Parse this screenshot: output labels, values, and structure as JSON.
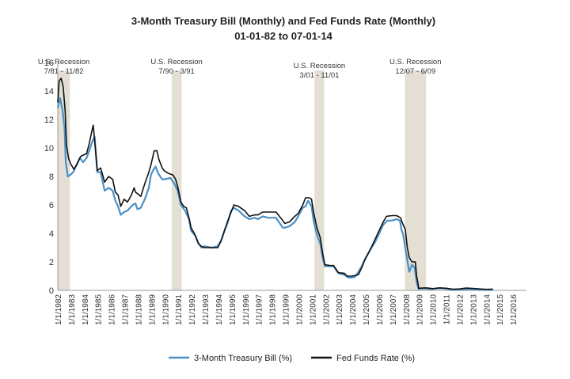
{
  "chart_data": {
    "type": "line",
    "title": "3-Month Treasury Bill (Monthly) and Fed Funds Rate (Monthly)",
    "subtitle": "01-01-82 to 07-01-14",
    "ylim": [
      0,
      16
    ],
    "yticks": [
      0,
      2,
      4,
      6,
      8,
      10,
      12,
      14,
      16
    ],
    "xlim": [
      1982,
      2017
    ],
    "xticks": [
      {
        "year": 1982,
        "label": "1/1/1982"
      },
      {
        "year": 1983,
        "label": "1/1/1983"
      },
      {
        "year": 1984,
        "label": "1/1/1984"
      },
      {
        "year": 1985,
        "label": "1/1/1985"
      },
      {
        "year": 1986,
        "label": "1/1/1986"
      },
      {
        "year": 1987,
        "label": "1/1/1987"
      },
      {
        "year": 1988,
        "label": "1/1/1988"
      },
      {
        "year": 1989,
        "label": "1/1/1989"
      },
      {
        "year": 1990,
        "label": "1/1/1990"
      },
      {
        "year": 1991,
        "label": "1/1/1991"
      },
      {
        "year": 1992,
        "label": "1/1/1992"
      },
      {
        "year": 1993,
        "label": "1/1/1993"
      },
      {
        "year": 1994,
        "label": "1/1/1994"
      },
      {
        "year": 1995,
        "label": "1/1/1995"
      },
      {
        "year": 1996,
        "label": "1/1/1996"
      },
      {
        "year": 1997,
        "label": "1/1/1997"
      },
      {
        "year": 1998,
        "label": "1/1/1998"
      },
      {
        "year": 1999,
        "label": "1/1/1999"
      },
      {
        "year": 2000,
        "label": "1/1/2000"
      },
      {
        "year": 2001,
        "label": "1/1/2001"
      },
      {
        "year": 2002,
        "label": "1/1/2002"
      },
      {
        "year": 2003,
        "label": "1/1/2003"
      },
      {
        "year": 2004,
        "label": "1/1/2004"
      },
      {
        "year": 2005,
        "label": "1/1/2005"
      },
      {
        "year": 2006,
        "label": "1/1/2006"
      },
      {
        "year": 2007,
        "label": "1/1/2007"
      },
      {
        "year": 2008,
        "label": "1/1/2008"
      },
      {
        "year": 2009,
        "label": "1/1/2009"
      },
      {
        "year": 2010,
        "label": "1/1/2010"
      },
      {
        "year": 2011,
        "label": "1/1/2011"
      },
      {
        "year": 2012,
        "label": "1/1/2012"
      },
      {
        "year": 2013,
        "label": "1/1/2013"
      },
      {
        "year": 2014,
        "label": "1/1/2014"
      },
      {
        "year": 2015,
        "label": "1/1/2015"
      },
      {
        "year": 2016,
        "label": "1/1/2016"
      }
    ],
    "grid": false,
    "legend_position": "bottom",
    "recessions": [
      {
        "label": "U.S. Recession",
        "dates": "7/81 - 11/82",
        "start": 1982.0,
        "end": 1982.9
      },
      {
        "label": "U.S. Recession",
        "dates": "7/90 - 3/91",
        "start": 1990.5,
        "end": 1991.25
      },
      {
        "label": "U.S. Recession",
        "dates": "3/01 - 11/01",
        "start": 2001.17,
        "end": 2001.9
      },
      {
        "label": "U.S. Recession",
        "dates": "12/07 - 6/09",
        "start": 2007.92,
        "end": 2009.5
      }
    ],
    "colors": {
      "recession": "#e3dfd3",
      "tbill": "#4a90c8",
      "fedfunds": "#111111"
    },
    "series": [
      {
        "name": "3-Month Treasury Bill (%)",
        "points": [
          [
            1982.0,
            12.8
          ],
          [
            1982.17,
            13.5
          ],
          [
            1982.35,
            12.7
          ],
          [
            1982.5,
            11.4
          ],
          [
            1982.6,
            9.0
          ],
          [
            1982.75,
            8.0
          ],
          [
            1982.92,
            8.1
          ],
          [
            1983.15,
            8.3
          ],
          [
            1983.4,
            8.8
          ],
          [
            1983.65,
            9.3
          ],
          [
            1983.9,
            9.0
          ],
          [
            1984.15,
            9.3
          ],
          [
            1984.35,
            9.8
          ],
          [
            1984.6,
            10.5
          ],
          [
            1984.75,
            10.8
          ],
          [
            1984.95,
            8.3
          ],
          [
            1985.2,
            8.3
          ],
          [
            1985.5,
            7.0
          ],
          [
            1985.8,
            7.2
          ],
          [
            1986.1,
            7.0
          ],
          [
            1986.3,
            6.3
          ],
          [
            1986.5,
            5.9
          ],
          [
            1986.7,
            5.3
          ],
          [
            1986.95,
            5.5
          ],
          [
            1987.2,
            5.6
          ],
          [
            1987.4,
            5.8
          ],
          [
            1987.6,
            6.0
          ],
          [
            1987.8,
            6.1
          ],
          [
            1987.95,
            5.7
          ],
          [
            1988.2,
            5.8
          ],
          [
            1988.5,
            6.4
          ],
          [
            1988.8,
            7.2
          ],
          [
            1988.95,
            8.1
          ],
          [
            1989.1,
            8.4
          ],
          [
            1989.3,
            8.7
          ],
          [
            1989.5,
            8.2
          ],
          [
            1989.8,
            7.8
          ],
          [
            1990.0,
            7.8
          ],
          [
            1990.4,
            7.9
          ],
          [
            1990.7,
            7.5
          ],
          [
            1990.95,
            7.0
          ],
          [
            1991.2,
            6.0
          ],
          [
            1991.5,
            5.6
          ],
          [
            1991.8,
            5.0
          ],
          [
            1991.95,
            4.2
          ],
          [
            1992.3,
            3.8
          ],
          [
            1992.5,
            3.3
          ],
          [
            1992.75,
            3.0
          ],
          [
            1992.95,
            3.1
          ],
          [
            1993.5,
            3.0
          ],
          [
            1993.95,
            3.1
          ],
          [
            1994.2,
            3.5
          ],
          [
            1994.45,
            4.2
          ],
          [
            1994.7,
            4.8
          ],
          [
            1994.95,
            5.6
          ],
          [
            1995.15,
            5.8
          ],
          [
            1995.5,
            5.6
          ],
          [
            1995.95,
            5.2
          ],
          [
            1996.3,
            5.0
          ],
          [
            1996.7,
            5.1
          ],
          [
            1996.95,
            5.0
          ],
          [
            1997.3,
            5.2
          ],
          [
            1997.7,
            5.1
          ],
          [
            1997.95,
            5.1
          ],
          [
            1998.3,
            5.1
          ],
          [
            1998.8,
            4.4
          ],
          [
            1998.95,
            4.4
          ],
          [
            1999.3,
            4.5
          ],
          [
            1999.7,
            4.8
          ],
          [
            1999.95,
            5.2
          ],
          [
            2000.3,
            5.8
          ],
          [
            2000.5,
            5.9
          ],
          [
            2000.7,
            6.3
          ],
          [
            2000.95,
            5.9
          ],
          [
            2001.1,
            4.9
          ],
          [
            2001.35,
            3.9
          ],
          [
            2001.6,
            3.3
          ],
          [
            2001.8,
            2.2
          ],
          [
            2001.95,
            1.7
          ],
          [
            2002.3,
            1.7
          ],
          [
            2002.6,
            1.7
          ],
          [
            2002.95,
            1.2
          ],
          [
            2003.4,
            1.1
          ],
          [
            2003.7,
            0.9
          ],
          [
            2003.95,
            0.9
          ],
          [
            2004.2,
            0.95
          ],
          [
            2004.45,
            1.3
          ],
          [
            2004.7,
            1.7
          ],
          [
            2004.95,
            2.2
          ],
          [
            2005.3,
            2.8
          ],
          [
            2005.7,
            3.4
          ],
          [
            2005.95,
            3.9
          ],
          [
            2006.3,
            4.6
          ],
          [
            2006.6,
            4.9
          ],
          [
            2006.95,
            4.9
          ],
          [
            2007.3,
            5.0
          ],
          [
            2007.55,
            4.9
          ],
          [
            2007.65,
            4.3
          ],
          [
            2007.8,
            3.9
          ],
          [
            2007.95,
            3.0
          ],
          [
            2008.1,
            2.1
          ],
          [
            2008.25,
            1.3
          ],
          [
            2008.45,
            1.8
          ],
          [
            2008.65,
            1.6
          ],
          [
            2008.8,
            0.6
          ],
          [
            2008.95,
            0.1
          ],
          [
            2009.3,
            0.15
          ],
          [
            2009.7,
            0.1
          ],
          [
            2010.0,
            0.1
          ],
          [
            2010.5,
            0.15
          ],
          [
            2011.0,
            0.12
          ],
          [
            2011.5,
            0.05
          ],
          [
            2012.0,
            0.05
          ],
          [
            2012.5,
            0.09
          ],
          [
            2013.0,
            0.08
          ],
          [
            2013.5,
            0.05
          ],
          [
            2014.0,
            0.04
          ],
          [
            2014.5,
            0.03
          ]
        ]
      },
      {
        "name": "Fed Funds Rate (%)",
        "points": [
          [
            1982.0,
            13.2
          ],
          [
            1982.1,
            14.7
          ],
          [
            1982.25,
            14.9
          ],
          [
            1982.4,
            14.3
          ],
          [
            1982.55,
            12.6
          ],
          [
            1982.65,
            10.2
          ],
          [
            1982.8,
            9.3
          ],
          [
            1982.95,
            8.9
          ],
          [
            1983.2,
            8.5
          ],
          [
            1983.45,
            8.9
          ],
          [
            1983.7,
            9.4
          ],
          [
            1983.9,
            9.5
          ],
          [
            1984.15,
            9.6
          ],
          [
            1984.35,
            10.3
          ],
          [
            1984.55,
            11.2
          ],
          [
            1984.65,
            11.6
          ],
          [
            1984.8,
            10.0
          ],
          [
            1984.95,
            8.4
          ],
          [
            1985.2,
            8.6
          ],
          [
            1985.5,
            7.6
          ],
          [
            1985.8,
            8.0
          ],
          [
            1986.1,
            7.8
          ],
          [
            1986.3,
            6.9
          ],
          [
            1986.5,
            6.7
          ],
          [
            1986.7,
            5.9
          ],
          [
            1986.95,
            6.4
          ],
          [
            1987.2,
            6.2
          ],
          [
            1987.5,
            6.7
          ],
          [
            1987.7,
            7.2
          ],
          [
            1987.8,
            6.9
          ],
          [
            1987.95,
            6.8
          ],
          [
            1988.2,
            6.6
          ],
          [
            1988.5,
            7.5
          ],
          [
            1988.8,
            8.3
          ],
          [
            1988.95,
            8.8
          ],
          [
            1989.2,
            9.8
          ],
          [
            1989.4,
            9.8
          ],
          [
            1989.55,
            9.2
          ],
          [
            1989.8,
            8.6
          ],
          [
            1989.95,
            8.4
          ],
          [
            1990.3,
            8.2
          ],
          [
            1990.6,
            8.1
          ],
          [
            1990.8,
            7.8
          ],
          [
            1990.95,
            7.3
          ],
          [
            1991.2,
            6.2
          ],
          [
            1991.4,
            5.9
          ],
          [
            1991.6,
            5.8
          ],
          [
            1991.85,
            4.9
          ],
          [
            1991.95,
            4.4
          ],
          [
            1992.2,
            4.0
          ],
          [
            1992.5,
            3.3
          ],
          [
            1992.7,
            3.1
          ],
          [
            1992.95,
            3.0
          ],
          [
            1993.5,
            3.0
          ],
          [
            1993.95,
            3.0
          ],
          [
            1994.2,
            3.5
          ],
          [
            1994.45,
            4.2
          ],
          [
            1994.7,
            4.9
          ],
          [
            1994.95,
            5.5
          ],
          [
            1995.15,
            6.0
          ],
          [
            1995.5,
            5.9
          ],
          [
            1995.95,
            5.6
          ],
          [
            1996.3,
            5.2
          ],
          [
            1996.7,
            5.3
          ],
          [
            1996.95,
            5.3
          ],
          [
            1997.3,
            5.5
          ],
          [
            1997.7,
            5.5
          ],
          [
            1997.95,
            5.5
          ],
          [
            1998.3,
            5.5
          ],
          [
            1998.8,
            4.9
          ],
          [
            1998.95,
            4.7
          ],
          [
            1999.3,
            4.8
          ],
          [
            1999.7,
            5.2
          ],
          [
            1999.95,
            5.4
          ],
          [
            2000.3,
            6.0
          ],
          [
            2000.5,
            6.5
          ],
          [
            2000.8,
            6.5
          ],
          [
            2000.95,
            6.4
          ],
          [
            2001.1,
            5.5
          ],
          [
            2001.35,
            4.4
          ],
          [
            2001.6,
            3.7
          ],
          [
            2001.8,
            2.5
          ],
          [
            2001.95,
            1.8
          ],
          [
            2002.3,
            1.75
          ],
          [
            2002.6,
            1.74
          ],
          [
            2002.95,
            1.25
          ],
          [
            2003.4,
            1.2
          ],
          [
            2003.6,
            1.0
          ],
          [
            2003.95,
            1.0
          ],
          [
            2004.45,
            1.1
          ],
          [
            2004.7,
            1.6
          ],
          [
            2004.95,
            2.2
          ],
          [
            2005.3,
            2.8
          ],
          [
            2005.7,
            3.6
          ],
          [
            2005.95,
            4.1
          ],
          [
            2006.3,
            4.8
          ],
          [
            2006.55,
            5.2
          ],
          [
            2006.95,
            5.25
          ],
          [
            2007.3,
            5.25
          ],
          [
            2007.6,
            5.1
          ],
          [
            2007.75,
            4.7
          ],
          [
            2007.95,
            4.3
          ],
          [
            2008.1,
            3.0
          ],
          [
            2008.25,
            2.3
          ],
          [
            2008.45,
            2.0
          ],
          [
            2008.7,
            2.0
          ],
          [
            2008.8,
            1.0
          ],
          [
            2008.9,
            0.5
          ],
          [
            2008.95,
            0.15
          ],
          [
            2009.5,
            0.18
          ],
          [
            2010.0,
            0.12
          ],
          [
            2010.5,
            0.18
          ],
          [
            2011.0,
            0.15
          ],
          [
            2011.5,
            0.08
          ],
          [
            2012.0,
            0.1
          ],
          [
            2012.5,
            0.16
          ],
          [
            2013.0,
            0.14
          ],
          [
            2013.5,
            0.1
          ],
          [
            2014.0,
            0.07
          ],
          [
            2014.5,
            0.09
          ]
        ]
      }
    ]
  }
}
